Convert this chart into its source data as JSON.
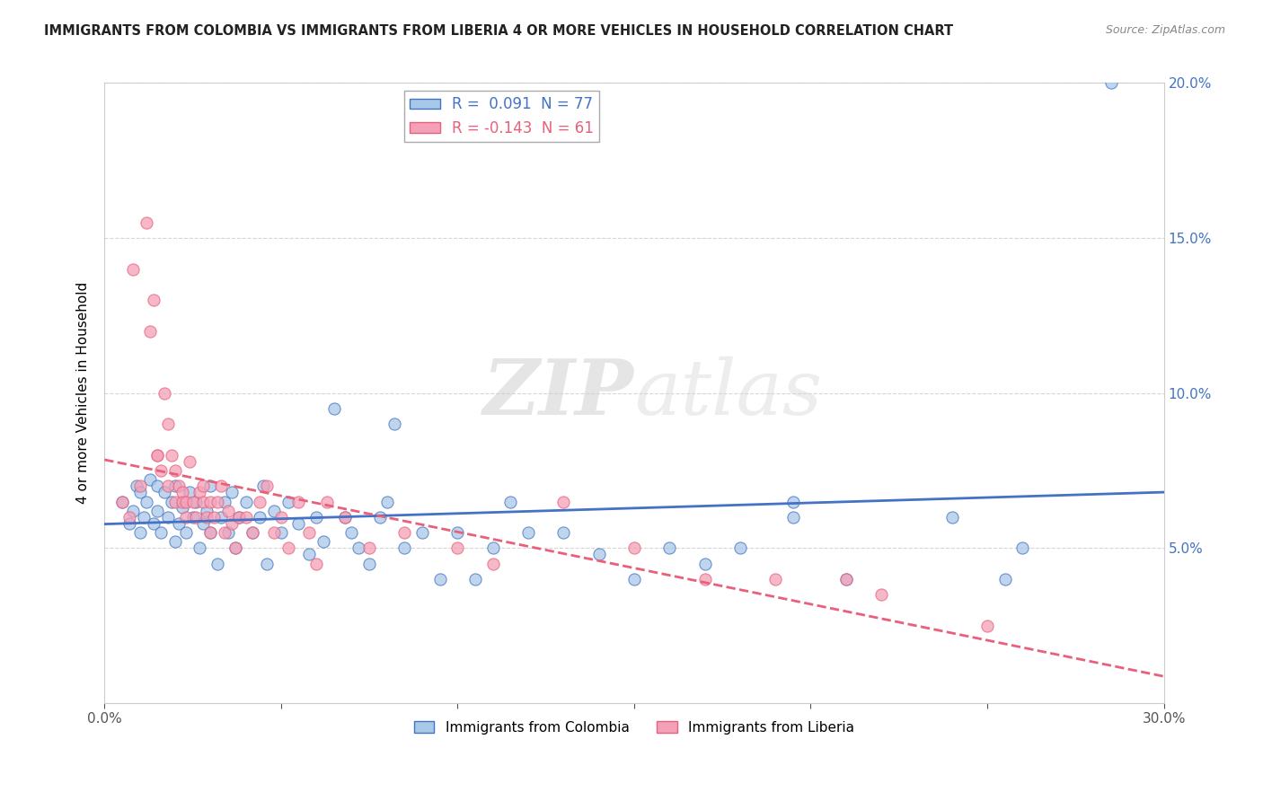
{
  "title": "IMMIGRANTS FROM COLOMBIA VS IMMIGRANTS FROM LIBERIA 4 OR MORE VEHICLES IN HOUSEHOLD CORRELATION CHART",
  "source": "Source: ZipAtlas.com",
  "ylabel": "4 or more Vehicles in Household",
  "xlabel": "",
  "xlim": [
    0.0,
    0.3
  ],
  "ylim": [
    0.0,
    0.2
  ],
  "xticks": [
    0.0,
    0.05,
    0.1,
    0.15,
    0.2,
    0.25,
    0.3
  ],
  "yticks": [
    0.0,
    0.05,
    0.1,
    0.15,
    0.2
  ],
  "colombia_color": "#a8c8e8",
  "liberia_color": "#f4a0b8",
  "colombia_line_color": "#4472c4",
  "liberia_line_color": "#e8607a",
  "colombia_R": 0.091,
  "colombia_N": 77,
  "liberia_R": -0.143,
  "liberia_N": 61,
  "watermark": "ZIPatlas",
  "colombia_scatter": [
    [
      0.005,
      0.065
    ],
    [
      0.007,
      0.058
    ],
    [
      0.008,
      0.062
    ],
    [
      0.009,
      0.07
    ],
    [
      0.01,
      0.055
    ],
    [
      0.01,
      0.068
    ],
    [
      0.011,
      0.06
    ],
    [
      0.012,
      0.065
    ],
    [
      0.013,
      0.072
    ],
    [
      0.014,
      0.058
    ],
    [
      0.015,
      0.062
    ],
    [
      0.015,
      0.07
    ],
    [
      0.016,
      0.055
    ],
    [
      0.017,
      0.068
    ],
    [
      0.018,
      0.06
    ],
    [
      0.019,
      0.065
    ],
    [
      0.02,
      0.052
    ],
    [
      0.02,
      0.07
    ],
    [
      0.021,
      0.058
    ],
    [
      0.022,
      0.063
    ],
    [
      0.023,
      0.055
    ],
    [
      0.024,
      0.068
    ],
    [
      0.025,
      0.06
    ],
    [
      0.026,
      0.065
    ],
    [
      0.027,
      0.05
    ],
    [
      0.028,
      0.058
    ],
    [
      0.029,
      0.062
    ],
    [
      0.03,
      0.055
    ],
    [
      0.03,
      0.07
    ],
    [
      0.032,
      0.045
    ],
    [
      0.033,
      0.06
    ],
    [
      0.034,
      0.065
    ],
    [
      0.035,
      0.055
    ],
    [
      0.036,
      0.068
    ],
    [
      0.037,
      0.05
    ],
    [
      0.038,
      0.06
    ],
    [
      0.04,
      0.065
    ],
    [
      0.042,
      0.055
    ],
    [
      0.044,
      0.06
    ],
    [
      0.045,
      0.07
    ],
    [
      0.046,
      0.045
    ],
    [
      0.048,
      0.062
    ],
    [
      0.05,
      0.055
    ],
    [
      0.052,
      0.065
    ],
    [
      0.055,
      0.058
    ],
    [
      0.058,
      0.048
    ],
    [
      0.06,
      0.06
    ],
    [
      0.062,
      0.052
    ],
    [
      0.065,
      0.095
    ],
    [
      0.068,
      0.06
    ],
    [
      0.07,
      0.055
    ],
    [
      0.072,
      0.05
    ],
    [
      0.075,
      0.045
    ],
    [
      0.078,
      0.06
    ],
    [
      0.08,
      0.065
    ],
    [
      0.082,
      0.09
    ],
    [
      0.085,
      0.05
    ],
    [
      0.09,
      0.055
    ],
    [
      0.095,
      0.04
    ],
    [
      0.1,
      0.055
    ],
    [
      0.105,
      0.04
    ],
    [
      0.11,
      0.05
    ],
    [
      0.115,
      0.065
    ],
    [
      0.12,
      0.055
    ],
    [
      0.13,
      0.055
    ],
    [
      0.14,
      0.048
    ],
    [
      0.15,
      0.04
    ],
    [
      0.16,
      0.05
    ],
    [
      0.17,
      0.045
    ],
    [
      0.18,
      0.05
    ],
    [
      0.195,
      0.06
    ],
    [
      0.21,
      0.04
    ],
    [
      0.24,
      0.06
    ],
    [
      0.255,
      0.04
    ],
    [
      0.26,
      0.05
    ],
    [
      0.285,
      0.2
    ],
    [
      0.195,
      0.065
    ]
  ],
  "liberia_scatter": [
    [
      0.005,
      0.065
    ],
    [
      0.007,
      0.06
    ],
    [
      0.008,
      0.14
    ],
    [
      0.01,
      0.07
    ],
    [
      0.012,
      0.155
    ],
    [
      0.013,
      0.12
    ],
    [
      0.014,
      0.13
    ],
    [
      0.015,
      0.08
    ],
    [
      0.016,
      0.075
    ],
    [
      0.017,
      0.1
    ],
    [
      0.018,
      0.09
    ],
    [
      0.018,
      0.07
    ],
    [
      0.019,
      0.08
    ],
    [
      0.02,
      0.075
    ],
    [
      0.02,
      0.065
    ],
    [
      0.021,
      0.07
    ],
    [
      0.022,
      0.068
    ],
    [
      0.022,
      0.065
    ],
    [
      0.023,
      0.065
    ],
    [
      0.023,
      0.06
    ],
    [
      0.024,
      0.078
    ],
    [
      0.025,
      0.065
    ],
    [
      0.026,
      0.06
    ],
    [
      0.027,
      0.068
    ],
    [
      0.028,
      0.07
    ],
    [
      0.028,
      0.065
    ],
    [
      0.029,
      0.06
    ],
    [
      0.03,
      0.055
    ],
    [
      0.03,
      0.065
    ],
    [
      0.031,
      0.06
    ],
    [
      0.032,
      0.065
    ],
    [
      0.033,
      0.07
    ],
    [
      0.034,
      0.055
    ],
    [
      0.035,
      0.062
    ],
    [
      0.036,
      0.058
    ],
    [
      0.037,
      0.05
    ],
    [
      0.038,
      0.06
    ],
    [
      0.04,
      0.06
    ],
    [
      0.042,
      0.055
    ],
    [
      0.044,
      0.065
    ],
    [
      0.046,
      0.07
    ],
    [
      0.048,
      0.055
    ],
    [
      0.05,
      0.06
    ],
    [
      0.052,
      0.05
    ],
    [
      0.055,
      0.065
    ],
    [
      0.058,
      0.055
    ],
    [
      0.06,
      0.045
    ],
    [
      0.063,
      0.065
    ],
    [
      0.068,
      0.06
    ],
    [
      0.075,
      0.05
    ],
    [
      0.085,
      0.055
    ],
    [
      0.1,
      0.05
    ],
    [
      0.11,
      0.045
    ],
    [
      0.13,
      0.065
    ],
    [
      0.15,
      0.05
    ],
    [
      0.17,
      0.04
    ],
    [
      0.19,
      0.04
    ],
    [
      0.21,
      0.04
    ],
    [
      0.22,
      0.035
    ],
    [
      0.25,
      0.025
    ],
    [
      0.015,
      0.08
    ]
  ]
}
